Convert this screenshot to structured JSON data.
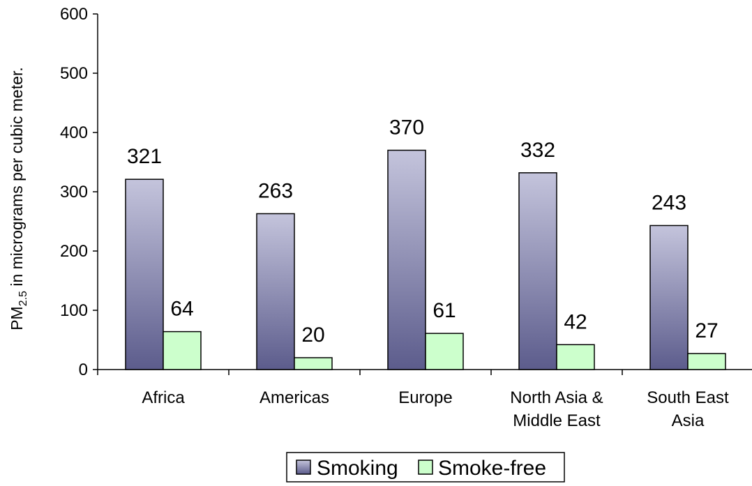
{
  "chart_data": {
    "type": "bar",
    "categories": [
      [
        "Africa"
      ],
      [
        "Americas"
      ],
      [
        "Europe"
      ],
      [
        "North Asia &",
        "Middle East"
      ],
      [
        "South East",
        "Asia"
      ]
    ],
    "series": [
      {
        "name": "Smoking",
        "values": [
          321,
          263,
          370,
          332,
          243
        ]
      },
      {
        "name": "Smoke-free",
        "values": [
          64,
          20,
          61,
          42,
          27
        ]
      }
    ],
    "ylabel": {
      "pre": "PM",
      "sub": "2.5",
      "post": " in micrograms per cubic meter."
    },
    "ylim": [
      0,
      600
    ],
    "yticks": [
      0,
      100,
      200,
      300,
      400,
      500,
      600
    ],
    "grid": false,
    "legend": "bottom",
    "colors": {
      "smoking_top": "#c4c4dc",
      "smoking_bottom": "#5c5c8c",
      "smoke_free": "#ccffcc",
      "outline": "#000000"
    }
  }
}
